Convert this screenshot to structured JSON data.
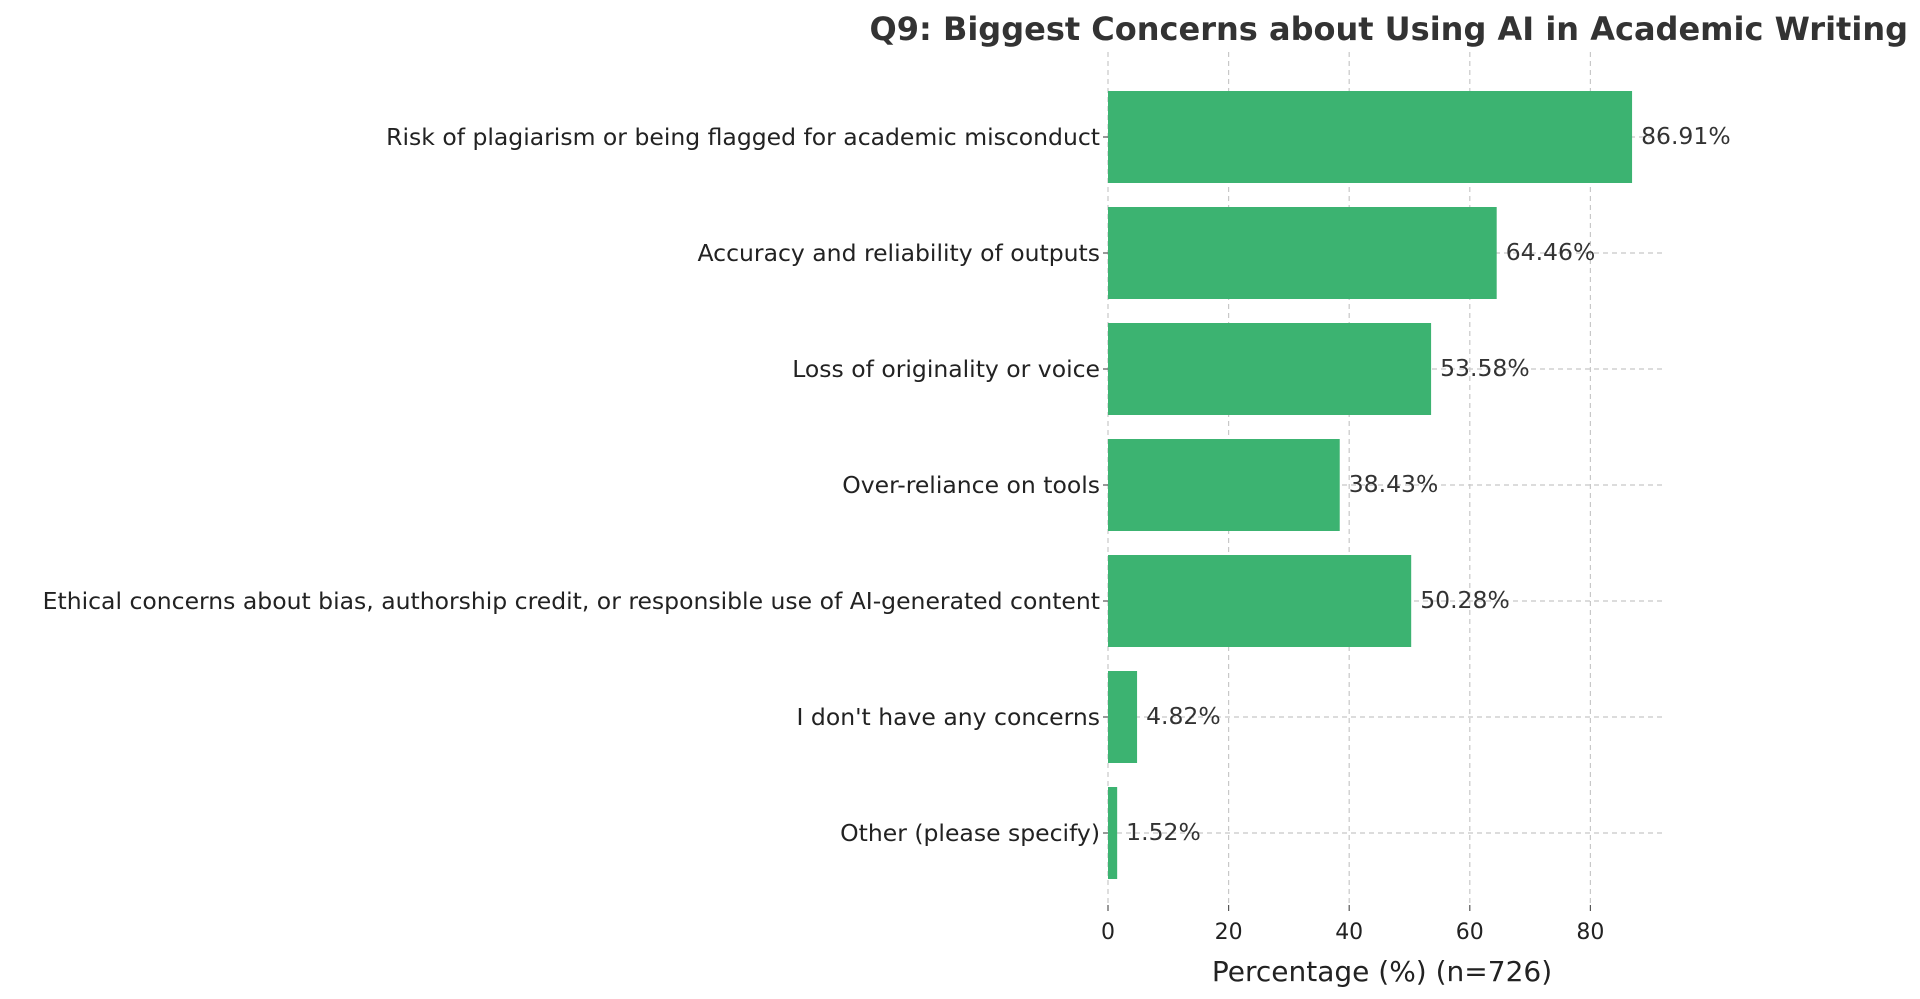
{
  "chart_data": {
    "type": "bar",
    "orientation": "horizontal",
    "title": "Q9: Biggest Concerns about Using AI in Academic Writing",
    "xlabel": "Percentage (%) (n=726)",
    "ylabel": "",
    "categories": [
      "Risk of plagiarism or being flagged for academic misconduct",
      "Accuracy and reliability of outputs",
      "Loss of originality or voice",
      "Over-reliance on tools",
      "Ethical concerns about bias, authorship credit, or responsible use of AI-generated content",
      "I don't have any concerns",
      "Other (please specify)"
    ],
    "values": [
      86.91,
      64.46,
      53.58,
      38.43,
      50.28,
      4.82,
      1.52
    ],
    "value_labels": [
      "86.91%",
      "64.46%",
      "53.58%",
      "38.43%",
      "50.28%",
      "4.82%",
      "1.52%"
    ],
    "xticks": [
      0,
      20,
      40,
      60,
      80
    ],
    "xtick_labels": [
      "0",
      "20",
      "40",
      "60",
      "80"
    ],
    "xlim": [
      0,
      91
    ],
    "grid": true,
    "bar_color": "#3cb371",
    "grid_color": "#c8c8c8"
  }
}
